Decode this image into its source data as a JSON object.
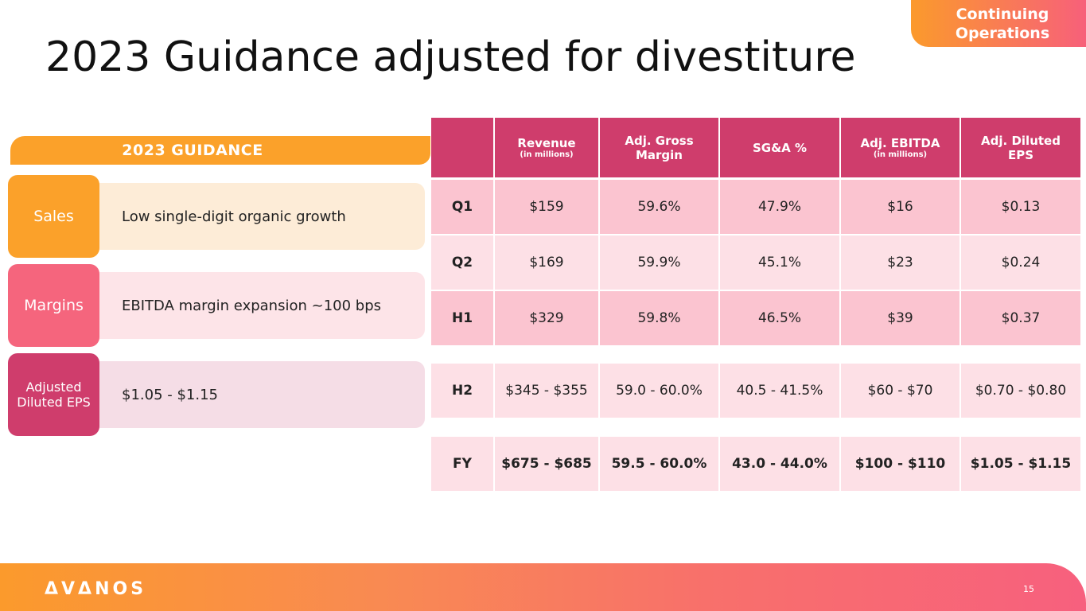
{
  "badge": {
    "line1": "Continuing",
    "line2": "Operations"
  },
  "title": "2023 Guidance adjusted for divestiture",
  "guidance": {
    "header": "2023 GUIDANCE",
    "rows": [
      {
        "tag": "Sales",
        "text": "Low single-digit organic growth",
        "tag_color": "#fba12a",
        "panel_color": "#fdecd7"
      },
      {
        "tag": "Margins",
        "text": "EBITDA margin expansion ~100 bps",
        "tag_color": "#f5657d",
        "panel_color": "#fde4e8"
      },
      {
        "tag": "Adjusted Diluted EPS",
        "text": "$1.05 - $1.15",
        "tag_color": "#cf3d6c",
        "panel_color": "#f5dde6"
      }
    ]
  },
  "table": {
    "columns": [
      {
        "label": "",
        "sub": ""
      },
      {
        "label": "Revenue",
        "sub": "(in millions)"
      },
      {
        "label": "Adj. Gross Margin",
        "sub": ""
      },
      {
        "label": "SG&A %",
        "sub": ""
      },
      {
        "label": "Adj. EBITDA",
        "sub": "(in millions)"
      },
      {
        "label": "Adj. Diluted EPS",
        "sub": ""
      }
    ],
    "rows": [
      {
        "label": "Q1",
        "values": [
          "$159",
          "59.6%",
          "47.9%",
          "$16",
          "$0.13"
        ],
        "bg": "#fbc4d0"
      },
      {
        "label": "Q2",
        "values": [
          "$169",
          "59.9%",
          "45.1%",
          "$23",
          "$0.24"
        ],
        "bg": "#fde0e6"
      },
      {
        "label": "H1",
        "values": [
          "$329",
          "59.8%",
          "46.5%",
          "$39",
          "$0.37"
        ],
        "bg": "#fbc4d0"
      },
      {
        "label": "H2",
        "values": [
          "$345 - $355",
          "59.0 - 60.0%",
          "40.5 - 41.5%",
          "$60 - $70",
          "$0.70 - $0.80"
        ],
        "bg": "#fde0e6"
      },
      {
        "label": "FY",
        "values": [
          "$675 - $685",
          "59.5 - 60.0%",
          "43.0 - 44.0%",
          "$100 - $110",
          "$1.05 - $1.15"
        ],
        "bg": "#fde0e6"
      }
    ]
  },
  "footer": {
    "logo": "ΔVΔNOS",
    "page": "15"
  }
}
